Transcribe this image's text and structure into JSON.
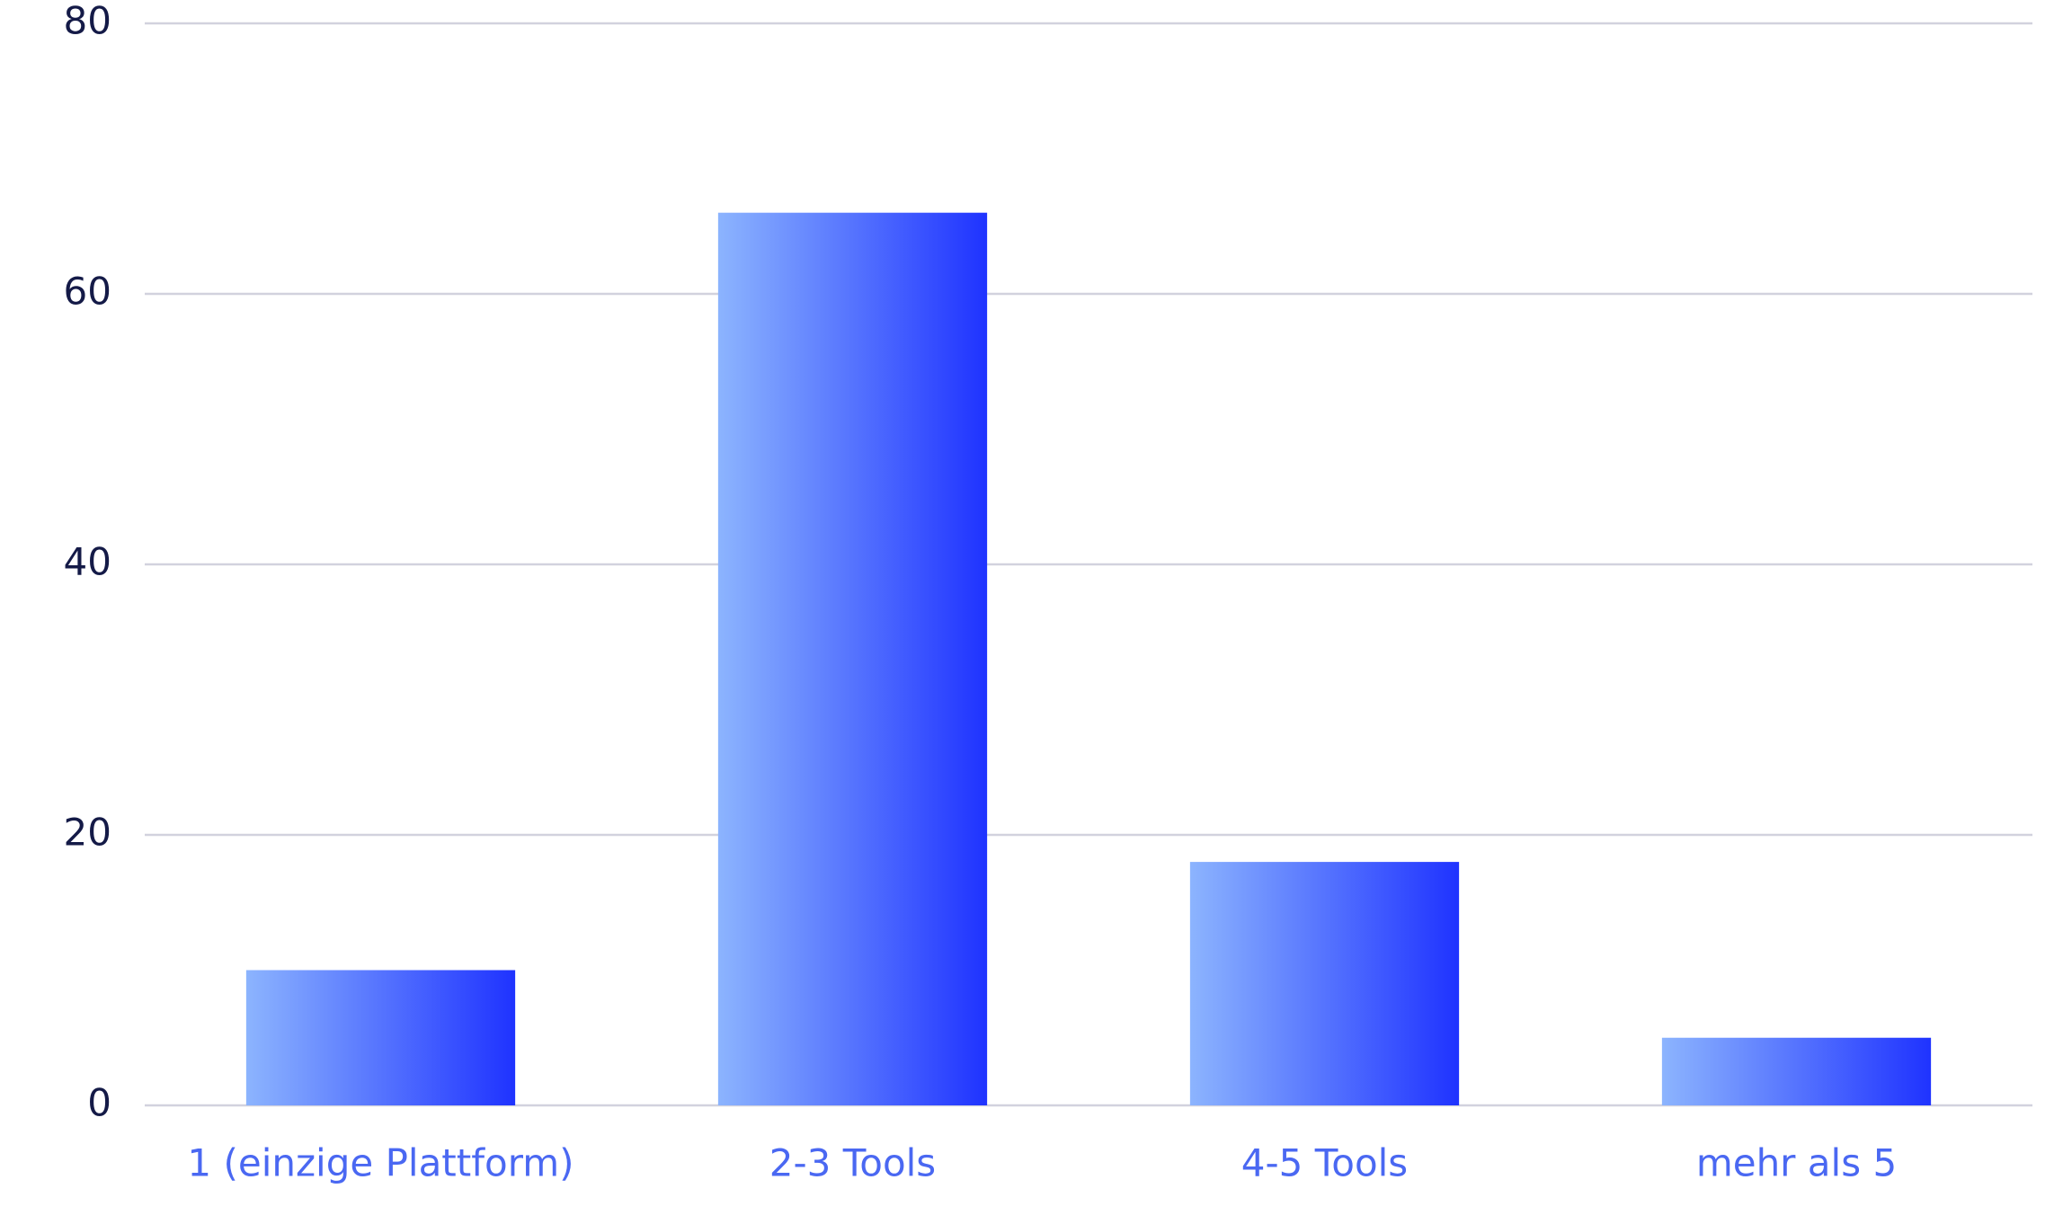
{
  "chart_data": {
    "type": "bar",
    "categories": [
      "1 (einzige Plattform)",
      "2-3 Tools",
      "4-5 Tools",
      "mehr als 5"
    ],
    "values": [
      10,
      66,
      18,
      5
    ],
    "gradient": [
      "#8cb4fe",
      "#1f33ff"
    ],
    "ylim": [
      0,
      80
    ],
    "yticks": [
      0,
      20,
      40,
      60,
      80
    ],
    "grid": true
  }
}
